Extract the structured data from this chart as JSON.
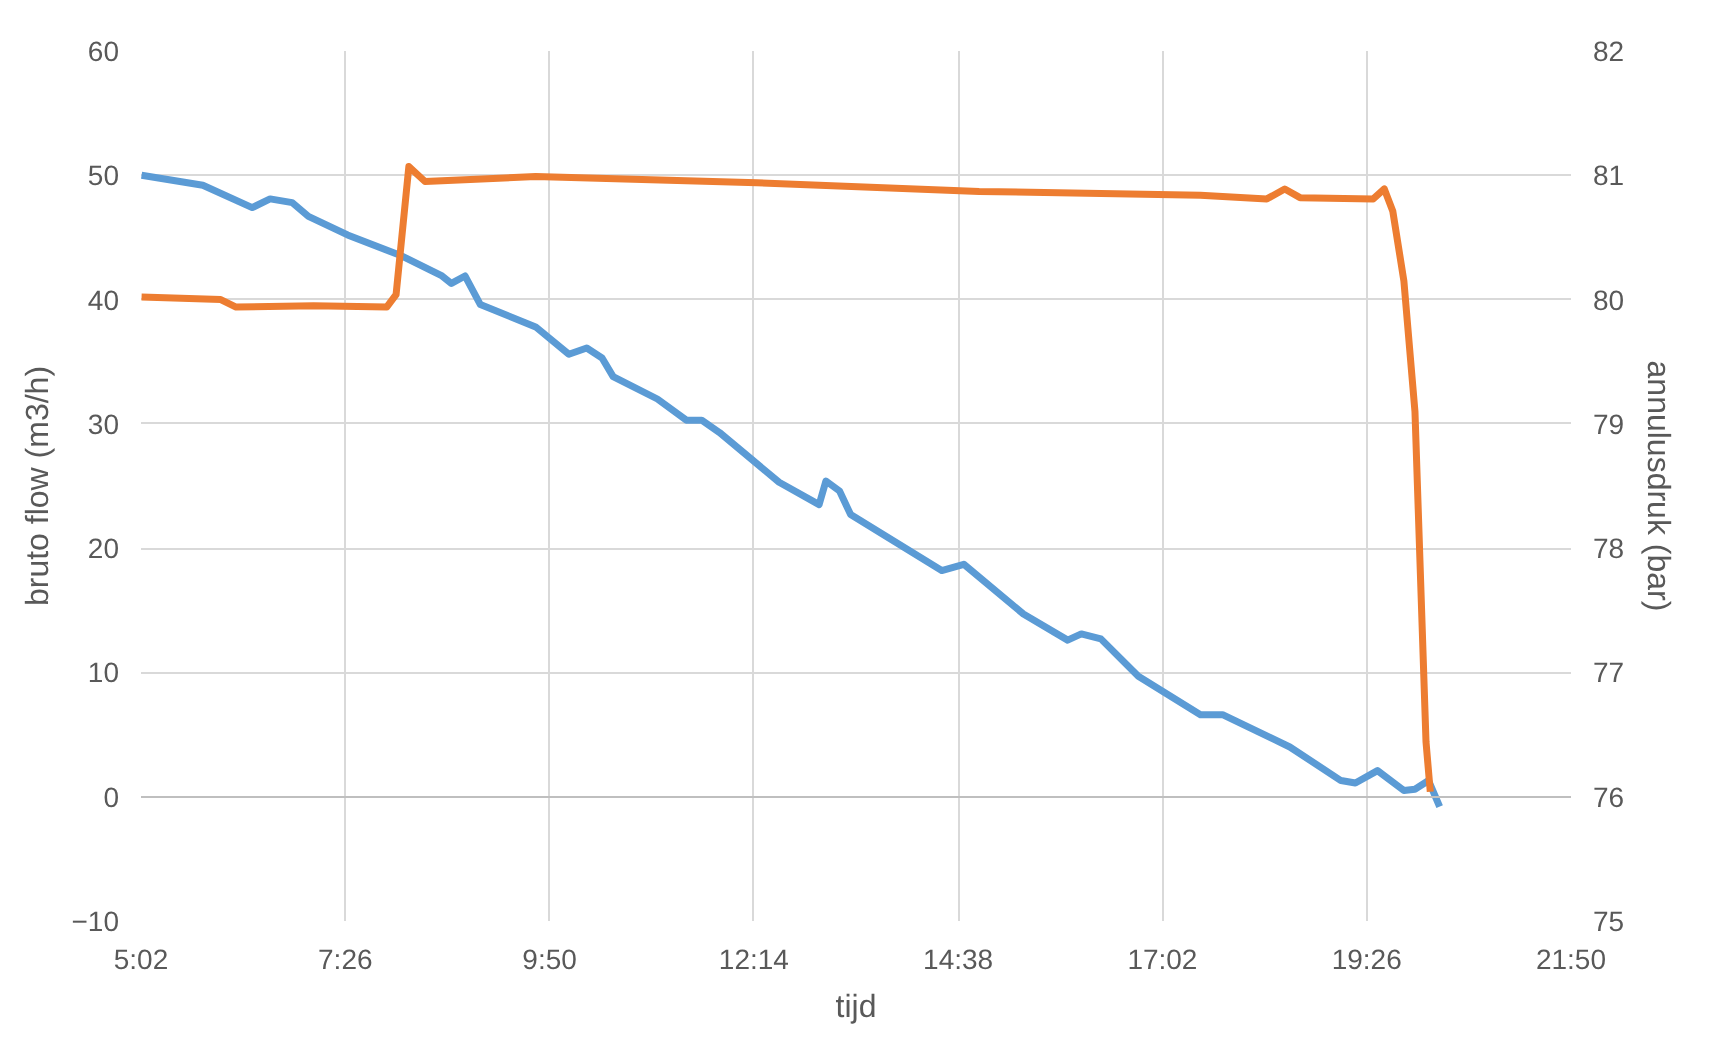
{
  "chart_data": {
    "type": "line",
    "xlabel": "tijd",
    "ylabel": "bruto flow (m3/h)",
    "y2label": "annulusdruk (bar)",
    "xlim": [
      5.0333,
      21.8333
    ],
    "xticks": [
      {
        "value": 5.0333,
        "label": "5:02"
      },
      {
        "value": 7.4333,
        "label": "7:26"
      },
      {
        "value": 9.8333,
        "label": "9:50"
      },
      {
        "value": 12.2333,
        "label": "12:14"
      },
      {
        "value": 14.6333,
        "label": "14:38"
      },
      {
        "value": 17.0333,
        "label": "17:02"
      },
      {
        "value": 19.4333,
        "label": "19:26"
      },
      {
        "value": 21.8333,
        "label": "21:50"
      }
    ],
    "ylim": [
      -10,
      60
    ],
    "yticks": [
      -10,
      0,
      10,
      20,
      30,
      40,
      50,
      60
    ],
    "y2lim": [
      75,
      82
    ],
    "y2ticks": [
      75,
      76,
      77,
      78,
      79,
      80,
      81,
      82
    ],
    "grid": true,
    "series": [
      {
        "color": "#5b9bd5",
        "x": [
          5.04,
          5.76,
          6.34,
          6.55,
          6.81,
          7.0,
          7.46,
          8.1,
          8.57,
          8.68,
          8.84,
          9.02,
          9.67,
          10.06,
          10.27,
          10.45,
          10.58,
          11.1,
          11.44,
          11.62,
          11.83,
          12.53,
          13.0,
          13.08,
          13.24,
          13.37,
          14.44,
          14.7,
          15.4,
          15.92,
          16.08,
          16.31,
          16.75,
          17.48,
          17.74,
          18.53,
          19.13,
          19.3,
          19.56,
          19.87,
          20.0,
          20.16,
          20.29
        ],
        "values": [
          50,
          49.2,
          47.4,
          48.1,
          47.8,
          46.7,
          45.2,
          43.5,
          41.9,
          41.3,
          41.9,
          39.6,
          37.8,
          35.6,
          36.1,
          35.3,
          33.8,
          32.0,
          30.3,
          30.3,
          29.3,
          25.3,
          23.5,
          25.4,
          24.6,
          22.7,
          18.2,
          18.7,
          14.7,
          12.6,
          13.1,
          12.7,
          9.7,
          6.6,
          6.6,
          4.0,
          1.3,
          1.1,
          2.1,
          0.5,
          0.6,
          1.3,
          -0.8
        ]
      },
      {
        "color": "#ed7d31",
        "axis": "y2",
        "x": [
          5.04,
          5.97,
          6.15,
          7.06,
          7.92,
          8.03,
          8.18,
          8.37,
          9.67,
          12.27,
          14.88,
          17.48,
          18.26,
          18.47,
          18.65,
          19.51,
          19.64,
          19.74,
          19.87,
          20.0,
          20.13,
          20.18
        ],
        "values": [
          80.02,
          80.0,
          79.94,
          79.95,
          79.94,
          80.04,
          81.07,
          80.95,
          80.99,
          80.94,
          80.87,
          80.84,
          80.81,
          80.89,
          80.82,
          80.81,
          80.89,
          80.71,
          80.15,
          79.1,
          76.44,
          76.04
        ]
      }
    ]
  }
}
